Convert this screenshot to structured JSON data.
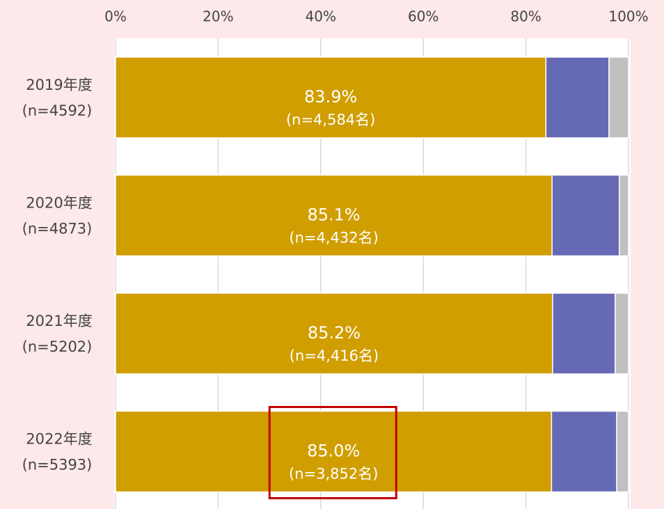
{
  "chart_data": {
    "type": "stacked-bar",
    "orientation": "horizontal",
    "categories": [
      "2019年度",
      "2020年度",
      "2021年度",
      "2022年度"
    ],
    "category_counts": [
      "(n=4592)",
      "(n=4873)",
      "(n=5202)",
      "(n=5393)"
    ],
    "series": [
      {
        "color": "#d09e00",
        "values": [
          83.9,
          85.1,
          85.2,
          85.0
        ],
        "value_labels": [
          "83.9%",
          "85.1%",
          "85.2%",
          "85.0%"
        ],
        "count_labels": [
          "(n=4,584名)",
          "(n=4,432名)",
          "(n=4,416名)",
          "(n=3,852名)"
        ]
      },
      {
        "color": "#6669b4",
        "values": [
          12.3,
          13.1,
          12.2,
          12.7
        ]
      },
      {
        "color": "#c0c0c0",
        "values": [
          3.8,
          1.8,
          2.6,
          2.3
        ]
      }
    ],
    "xlim": [
      0,
      100
    ],
    "xticks": [
      {
        "value": 0,
        "label": "0%"
      },
      {
        "value": 20,
        "label": "20%"
      },
      {
        "value": 40,
        "label": "40%"
      },
      {
        "value": 60,
        "label": "60%"
      },
      {
        "value": 80,
        "label": "80%"
      },
      {
        "value": 100,
        "label": "100%"
      }
    ],
    "grid": true
  }
}
